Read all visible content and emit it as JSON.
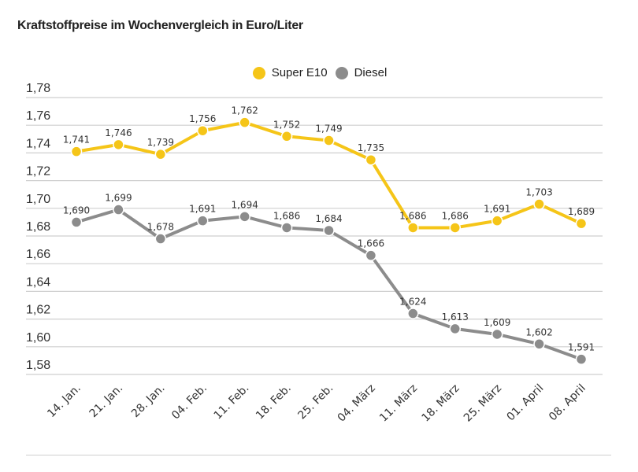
{
  "chart_data": {
    "type": "line",
    "title": "Kraftstoffpreise im Wochenvergleich in Euro/Liter",
    "xlabel": "",
    "ylabel": "",
    "ylim": [
      1.58,
      1.78
    ],
    "yticks": [
      "1,78",
      "1,76",
      "1,74",
      "1,72",
      "1,70",
      "1,68",
      "1,66",
      "1,64",
      "1,62",
      "1,60",
      "1,58"
    ],
    "ytick_values": [
      1.78,
      1.76,
      1.74,
      1.72,
      1.7,
      1.68,
      1.66,
      1.64,
      1.62,
      1.6,
      1.58
    ],
    "grid": true,
    "legend_position": "top-center",
    "categories": [
      "14. Jan.",
      "21. Jan.",
      "28. Jan.",
      "04. Feb.",
      "11. Feb.",
      "18. Feb.",
      "25. Feb.",
      "04. März",
      "11. März",
      "18. März",
      "25. März",
      "01. April",
      "08. April"
    ],
    "series": [
      {
        "name": "Super E10",
        "color": "#f5c518",
        "values": [
          1.741,
          1.746,
          1.739,
          1.756,
          1.762,
          1.752,
          1.749,
          1.735,
          1.686,
          1.686,
          1.691,
          1.703,
          1.689
        ],
        "labels": [
          "1,741",
          "1,746",
          "1,739",
          "1,756",
          "1,762",
          "1,752",
          "1,749",
          "1,735",
          "1,686",
          "1,686",
          "1,691",
          "1,703",
          "1,689"
        ]
      },
      {
        "name": "Diesel",
        "color": "#8c8c8c",
        "values": [
          1.69,
          1.699,
          1.678,
          1.691,
          1.694,
          1.686,
          1.684,
          1.666,
          1.624,
          1.613,
          1.609,
          1.602,
          1.591
        ],
        "labels": [
          "1,690",
          "1,699",
          "1,678",
          "1,691",
          "1,694",
          "1,686",
          "1,684",
          "1,666",
          "1,624",
          "1,613",
          "1,609",
          "1,602",
          "1,591"
        ]
      }
    ]
  }
}
